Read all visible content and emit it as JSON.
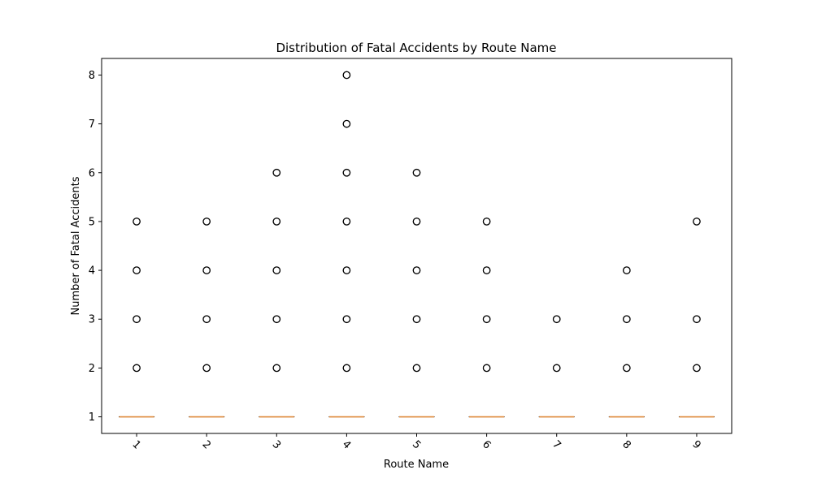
{
  "chart_data": {
    "type": "box",
    "title": "Distribution of Fatal Accidents by Route Name",
    "xlabel": "Route Name",
    "ylabel": "Number of Fatal Accidents",
    "categories": [
      "1",
      "2",
      "3",
      "4",
      "5",
      "6",
      "7",
      "8",
      "9"
    ],
    "ylim": [
      0.66,
      8.34
    ],
    "yticks": [
      1,
      2,
      3,
      4,
      5,
      6,
      7,
      8
    ],
    "xtick_rotation": 45,
    "grid": false,
    "colors": {
      "median": "#e08a3c",
      "box": "#000000",
      "flier": "#000000"
    },
    "boxes": [
      {
        "category": "1",
        "q1": 1,
        "median": 1,
        "q3": 1,
        "whisker_low": 1,
        "whisker_high": 1,
        "fliers": [
          2,
          3,
          4,
          5
        ]
      },
      {
        "category": "2",
        "q1": 1,
        "median": 1,
        "q3": 1,
        "whisker_low": 1,
        "whisker_high": 1,
        "fliers": [
          2,
          3,
          4,
          5
        ]
      },
      {
        "category": "3",
        "q1": 1,
        "median": 1,
        "q3": 1,
        "whisker_low": 1,
        "whisker_high": 1,
        "fliers": [
          2,
          3,
          4,
          5,
          6
        ]
      },
      {
        "category": "4",
        "q1": 1,
        "median": 1,
        "q3": 1,
        "whisker_low": 1,
        "whisker_high": 1,
        "fliers": [
          2,
          3,
          4,
          5,
          6,
          7,
          8
        ]
      },
      {
        "category": "5",
        "q1": 1,
        "median": 1,
        "q3": 1,
        "whisker_low": 1,
        "whisker_high": 1,
        "fliers": [
          2,
          3,
          4,
          5,
          6
        ]
      },
      {
        "category": "6",
        "q1": 1,
        "median": 1,
        "q3": 1,
        "whisker_low": 1,
        "whisker_high": 1,
        "fliers": [
          2,
          3,
          4,
          5
        ]
      },
      {
        "category": "7",
        "q1": 1,
        "median": 1,
        "q3": 1,
        "whisker_low": 1,
        "whisker_high": 1,
        "fliers": [
          2,
          3
        ]
      },
      {
        "category": "8",
        "q1": 1,
        "median": 1,
        "q3": 1,
        "whisker_low": 1,
        "whisker_high": 1,
        "fliers": [
          2,
          3,
          4
        ]
      },
      {
        "category": "9",
        "q1": 1,
        "median": 1,
        "q3": 1,
        "whisker_low": 1,
        "whisker_high": 1,
        "fliers": [
          2,
          3,
          5
        ]
      }
    ]
  }
}
